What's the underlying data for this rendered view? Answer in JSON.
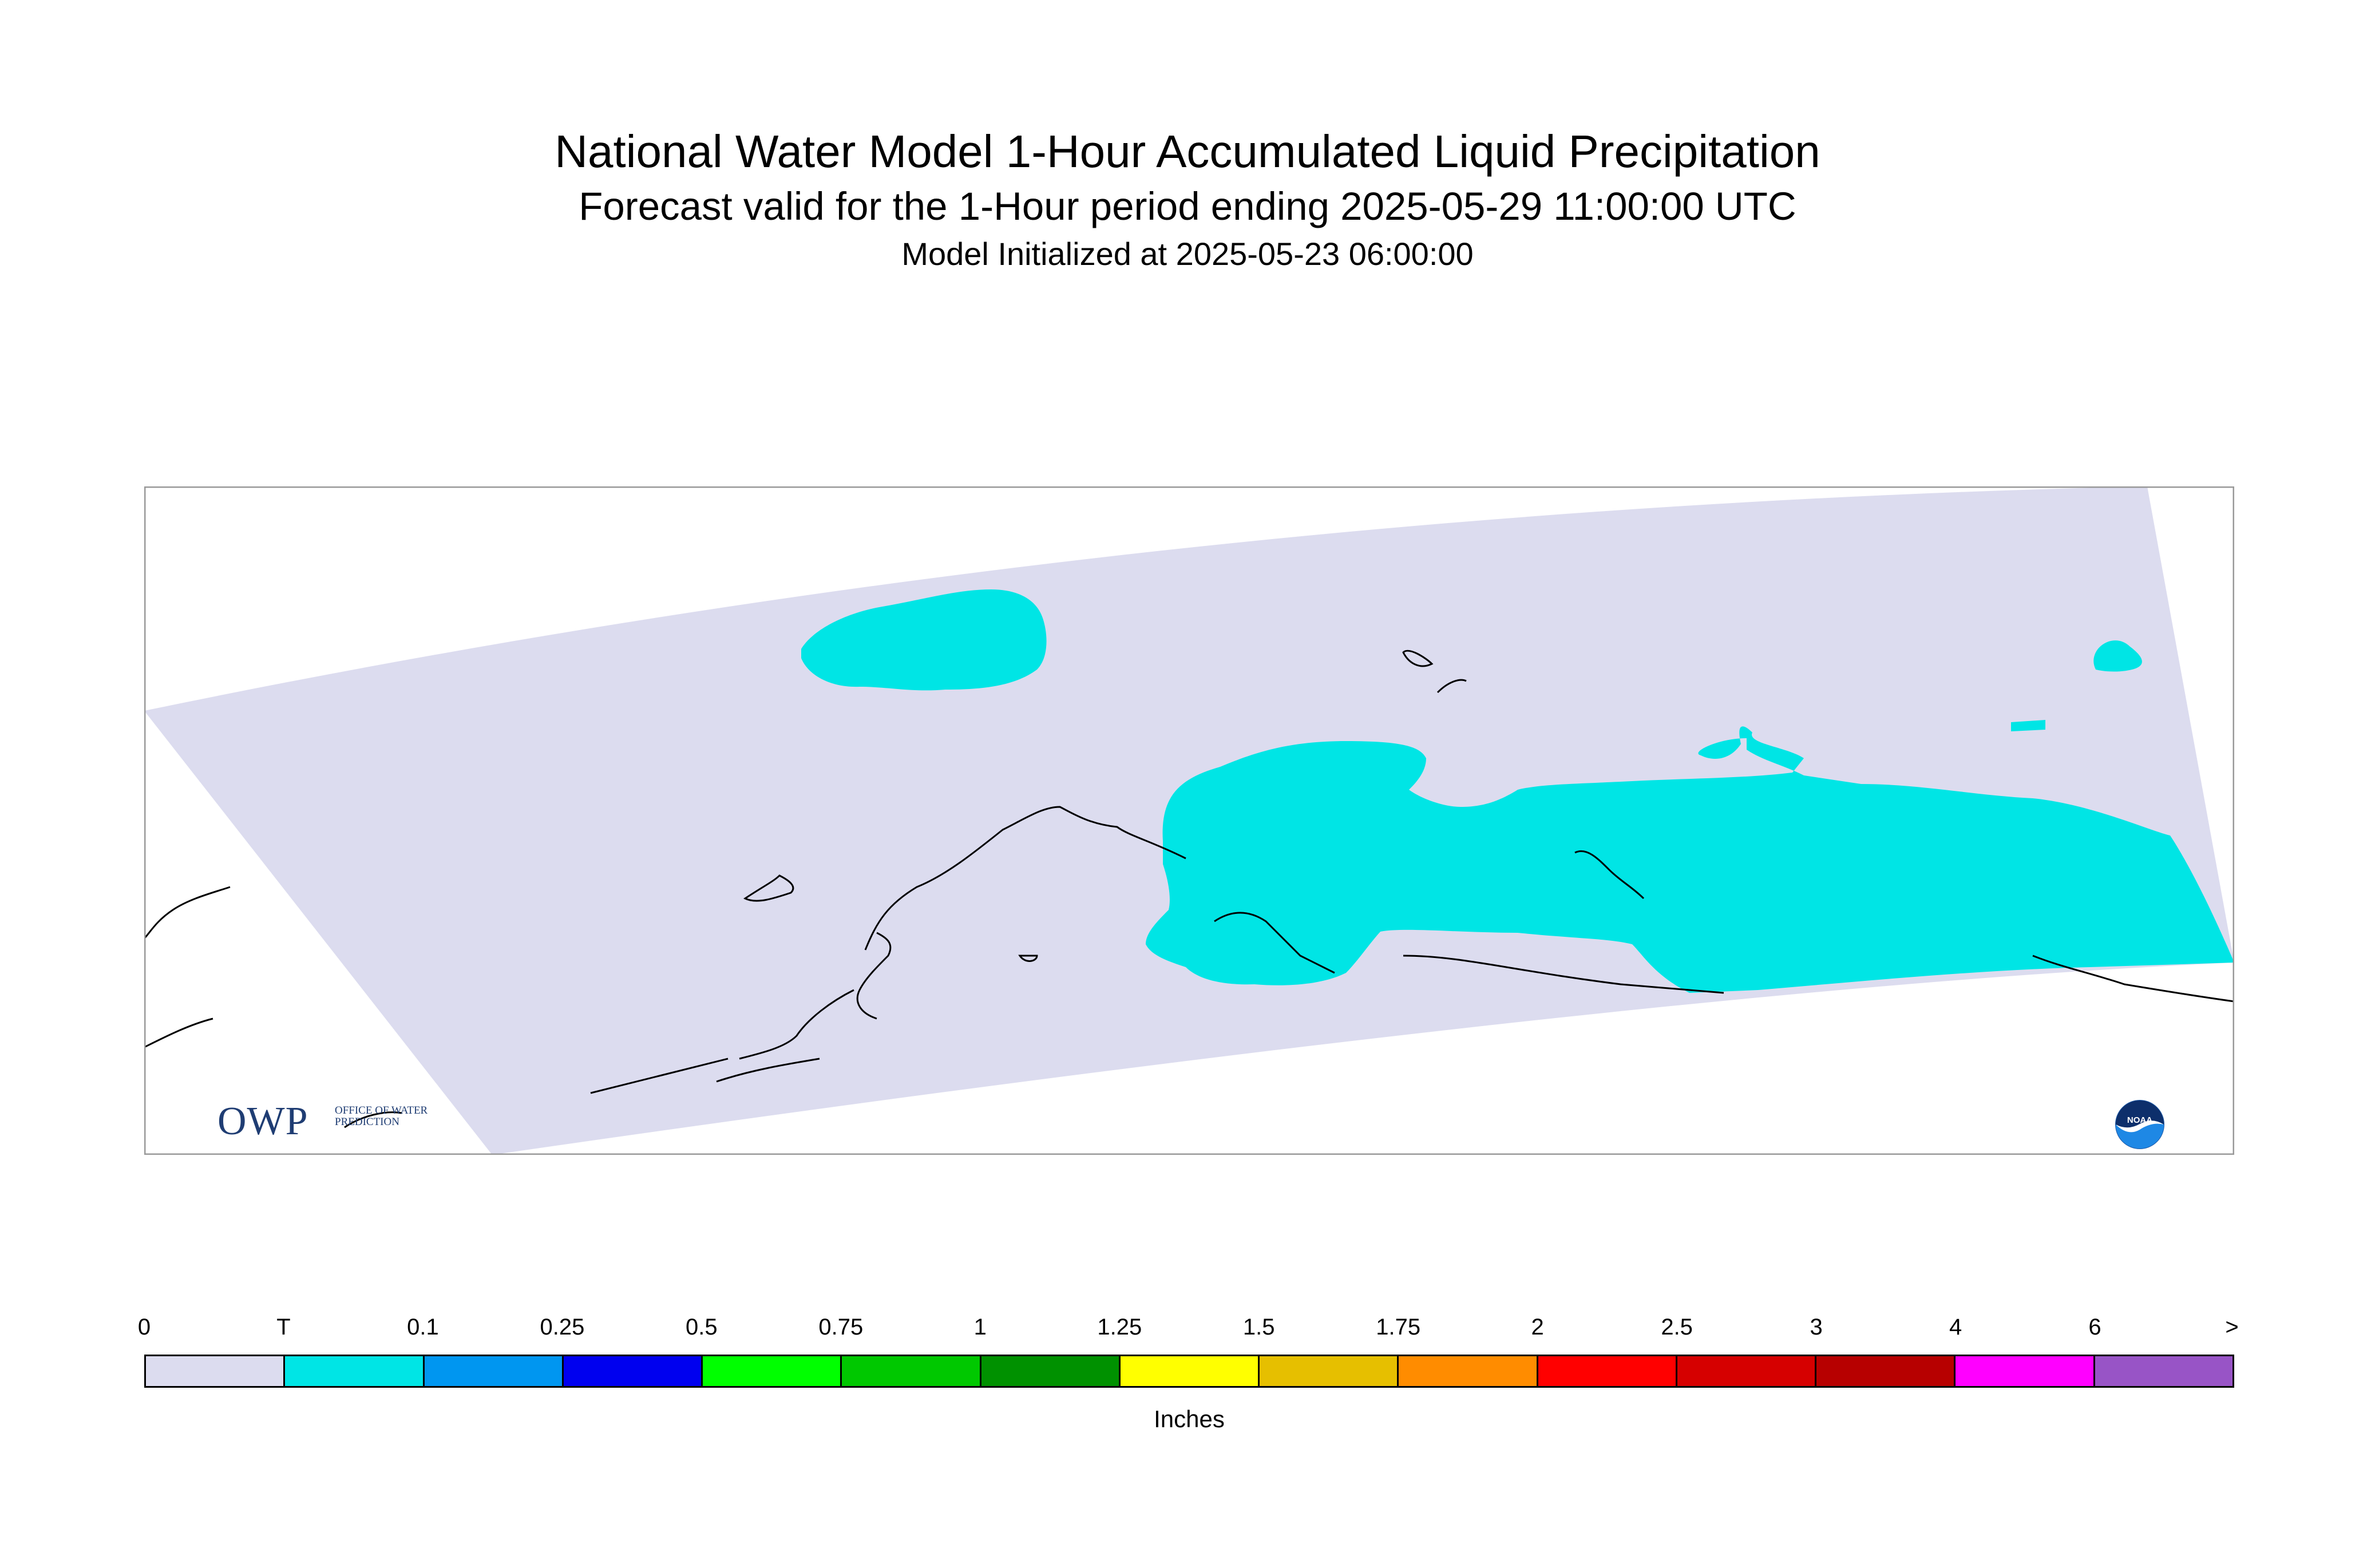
{
  "header": {
    "title": "National Water Model 1-Hour Accumulated Liquid Precipitation",
    "subtitle": "Forecast valid for the 1-Hour period ending 2025-05-29 11:00:00 UTC",
    "init_line": "Model Initialized at 2025-05-23 06:00:00"
  },
  "map": {
    "domain_fill_color": "#dcdcef",
    "precip_fill_color": "#00e5e5",
    "coastline_color": "#000000",
    "frame_color": "#999999"
  },
  "logos": {
    "owp": {
      "letters": "OWP",
      "subtext": "OFFICE OF WATER PREDICTION",
      "color": "#1f3d73"
    },
    "noaa": {
      "text": "NOAA",
      "color": "#1e88e5"
    }
  },
  "legend": {
    "units": "Inches",
    "tick_labels": [
      "0",
      "T",
      "0.1",
      "0.25",
      "0.5",
      "0.75",
      "1",
      "1.25",
      "1.5",
      "1.75",
      "2",
      "2.5",
      "3",
      "4",
      "6",
      ">"
    ],
    "colors": [
      "#dcdcef",
      "#00e5e5",
      "#0096f0",
      "#0000ef",
      "#00ff00",
      "#00c800",
      "#009100",
      "#ffff00",
      "#e6bf00",
      "#ff8c00",
      "#ff0000",
      "#d60000",
      "#b70000",
      "#ff00ff",
      "#9854c6"
    ]
  }
}
